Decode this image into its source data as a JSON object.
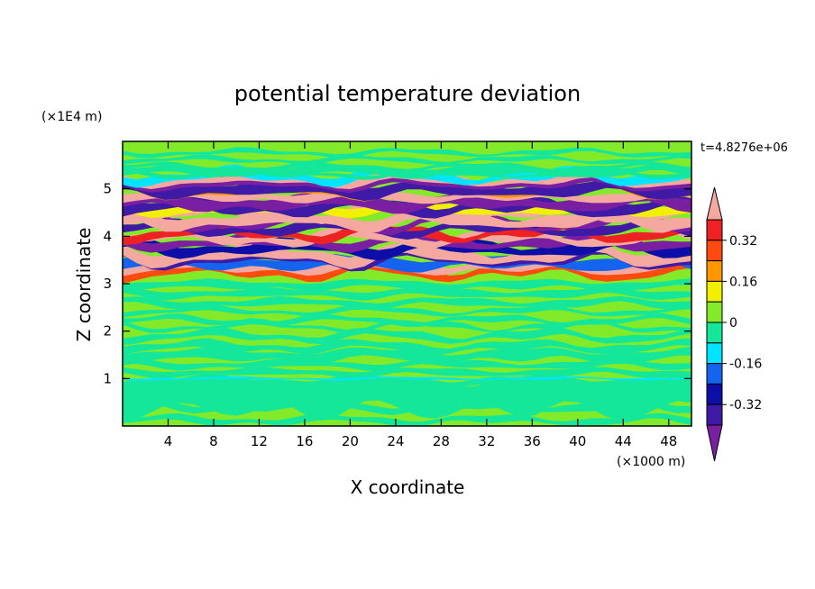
{
  "chart_data": {
    "type": "heatmap",
    "title": "potential temperature deviation",
    "xlabel": "X coordinate",
    "ylabel": "Z coordinate",
    "x_unit": "(×1000 m)",
    "y_unit": "(×1E4 m)",
    "time_label": "t=4.8276e+06",
    "xlim": [
      0,
      50
    ],
    "ylim": [
      0,
      6
    ],
    "x_ticks": [
      4,
      8,
      12,
      16,
      20,
      24,
      28,
      32,
      36,
      40,
      44,
      48
    ],
    "y_ticks": [
      1,
      2,
      3,
      4,
      5
    ],
    "colorbar": {
      "levels": [
        {
          "color": "#7b1fa2"
        },
        {
          "color": "#3f1aa6"
        },
        {
          "color": "#0d0da8"
        },
        {
          "color": "#1464f0"
        },
        {
          "color": "#00e5ff"
        },
        {
          "color": "#14e69a"
        },
        {
          "color": "#82ea28"
        },
        {
          "color": "#f0f000"
        },
        {
          "color": "#ff9800"
        },
        {
          "color": "#ff4a10"
        },
        {
          "color": "#ee2222"
        },
        {
          "color": "#f4a8a0"
        }
      ],
      "tick_labels": [
        "0.32",
        "0.16",
        "0",
        "-0.16",
        "-0.32"
      ]
    },
    "grid": false
  }
}
